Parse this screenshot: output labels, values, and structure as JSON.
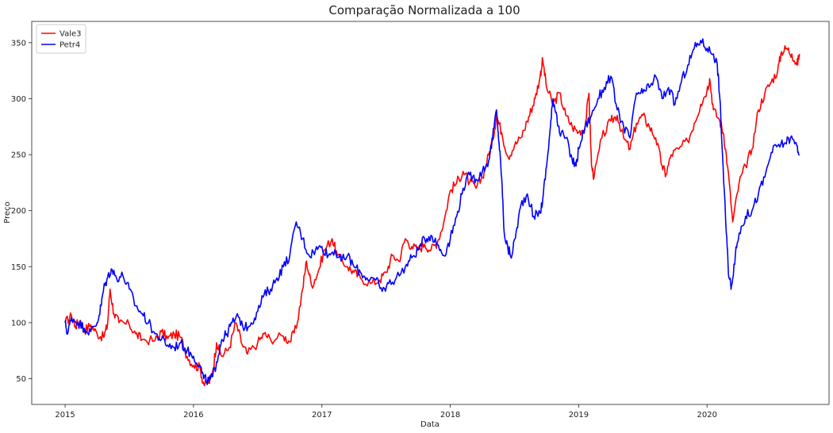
{
  "chart_data": {
    "type": "line",
    "title": "Comparação Normalizada a 100",
    "xlabel": "Data",
    "ylabel": "Preço",
    "xlim": [
      2014.74,
      2020.95
    ],
    "ylim": [
      27,
      369
    ],
    "x_ticks": [
      2015,
      2016,
      2017,
      2018,
      2019,
      2020
    ],
    "x_tick_labels": [
      "2015",
      "2016",
      "2017",
      "2018",
      "2019",
      "2020"
    ],
    "y_ticks": [
      50,
      100,
      150,
      200,
      250,
      300,
      350
    ],
    "y_tick_labels": [
      "50",
      "100",
      "150",
      "200",
      "250",
      "300",
      "350"
    ],
    "grid": false,
    "legend": "upper-left",
    "series": [
      {
        "name": "Vale3",
        "color": "#ff0000",
        "points": [
          [
            2015.0,
            100
          ],
          [
            2015.05,
            106
          ],
          [
            2015.08,
            97
          ],
          [
            2015.12,
            102
          ],
          [
            2015.15,
            93
          ],
          [
            2015.2,
            98
          ],
          [
            2015.25,
            90
          ],
          [
            2015.3,
            87
          ],
          [
            2015.33,
            98
          ],
          [
            2015.35,
            130
          ],
          [
            2015.38,
            108
          ],
          [
            2015.42,
            100
          ],
          [
            2015.5,
            98
          ],
          [
            2015.55,
            90
          ],
          [
            2015.6,
            85
          ],
          [
            2015.7,
            84
          ],
          [
            2015.75,
            92
          ],
          [
            2015.8,
            86
          ],
          [
            2015.85,
            90
          ],
          [
            2015.9,
            87
          ],
          [
            2015.95,
            70
          ],
          [
            2016.0,
            62
          ],
          [
            2016.05,
            60
          ],
          [
            2016.08,
            45
          ],
          [
            2016.12,
            46
          ],
          [
            2016.15,
            57
          ],
          [
            2016.18,
            82
          ],
          [
            2016.22,
            70
          ],
          [
            2016.28,
            78
          ],
          [
            2016.33,
            100
          ],
          [
            2016.38,
            80
          ],
          [
            2016.42,
            72
          ],
          [
            2016.5,
            82
          ],
          [
            2016.55,
            90
          ],
          [
            2016.6,
            85
          ],
          [
            2016.7,
            88
          ],
          [
            2016.75,
            83
          ],
          [
            2016.8,
            95
          ],
          [
            2016.85,
            130
          ],
          [
            2016.88,
            155
          ],
          [
            2016.92,
            133
          ],
          [
            2016.97,
            145
          ],
          [
            2017.02,
            165
          ],
          [
            2017.08,
            175
          ],
          [
            2017.12,
            160
          ],
          [
            2017.2,
            150
          ],
          [
            2017.25,
            145
          ],
          [
            2017.3,
            140
          ],
          [
            2017.38,
            135
          ],
          [
            2017.45,
            138
          ],
          [
            2017.5,
            145
          ],
          [
            2017.55,
            160
          ],
          [
            2017.6,
            155
          ],
          [
            2017.65,
            175
          ],
          [
            2017.7,
            168
          ],
          [
            2017.75,
            165
          ],
          [
            2017.8,
            170
          ],
          [
            2017.85,
            165
          ],
          [
            2017.9,
            172
          ],
          [
            2017.95,
            190
          ],
          [
            2018.0,
            218
          ],
          [
            2018.05,
            225
          ],
          [
            2018.1,
            235
          ],
          [
            2018.15,
            225
          ],
          [
            2018.2,
            220
          ],
          [
            2018.25,
            230
          ],
          [
            2018.3,
            250
          ],
          [
            2018.33,
            263
          ],
          [
            2018.36,
            285
          ],
          [
            2018.4,
            270
          ],
          [
            2018.45,
            248
          ],
          [
            2018.5,
            258
          ],
          [
            2018.55,
            265
          ],
          [
            2018.6,
            280
          ],
          [
            2018.63,
            290
          ],
          [
            2018.66,
            300
          ],
          [
            2018.7,
            320
          ],
          [
            2018.72,
            335
          ],
          [
            2018.75,
            310
          ],
          [
            2018.8,
            295
          ],
          [
            2018.85,
            305
          ],
          [
            2018.9,
            285
          ],
          [
            2018.95,
            275
          ],
          [
            2019.0,
            270
          ],
          [
            2019.05,
            275
          ],
          [
            2019.08,
            305
          ],
          [
            2019.1,
            240
          ],
          [
            2019.12,
            230
          ],
          [
            2019.18,
            265
          ],
          [
            2019.25,
            280
          ],
          [
            2019.3,
            285
          ],
          [
            2019.35,
            265
          ],
          [
            2019.4,
            255
          ],
          [
            2019.45,
            278
          ],
          [
            2019.5,
            285
          ],
          [
            2019.55,
            275
          ],
          [
            2019.6,
            265
          ],
          [
            2019.65,
            240
          ],
          [
            2019.68,
            232
          ],
          [
            2019.72,
            250
          ],
          [
            2019.78,
            255
          ],
          [
            2019.85,
            262
          ],
          [
            2019.9,
            278
          ],
          [
            2019.95,
            295
          ],
          [
            2020.0,
            308
          ],
          [
            2020.02,
            318
          ],
          [
            2020.05,
            290
          ],
          [
            2020.1,
            280
          ],
          [
            2020.13,
            268
          ],
          [
            2020.16,
            240
          ],
          [
            2020.2,
            190
          ],
          [
            2020.25,
            225
          ],
          [
            2020.3,
            240
          ],
          [
            2020.35,
            255
          ],
          [
            2020.4,
            290
          ],
          [
            2020.45,
            305
          ],
          [
            2020.5,
            315
          ],
          [
            2020.55,
            325
          ],
          [
            2020.58,
            342
          ],
          [
            2020.62,
            345
          ],
          [
            2020.66,
            340
          ],
          [
            2020.7,
            330
          ],
          [
            2020.72,
            340
          ]
        ]
      },
      {
        "name": "Petr4",
        "color": "#0000ff",
        "points": [
          [
            2015.0,
            100
          ],
          [
            2015.02,
            90
          ],
          [
            2015.05,
            105
          ],
          [
            2015.1,
            100
          ],
          [
            2015.15,
            95
          ],
          [
            2015.2,
            92
          ],
          [
            2015.25,
            100
          ],
          [
            2015.28,
            115
          ],
          [
            2015.3,
            130
          ],
          [
            2015.33,
            140
          ],
          [
            2015.36,
            148
          ],
          [
            2015.4,
            140
          ],
          [
            2015.45,
            142
          ],
          [
            2015.5,
            130
          ],
          [
            2015.55,
            115
          ],
          [
            2015.6,
            108
          ],
          [
            2015.65,
            100
          ],
          [
            2015.7,
            90
          ],
          [
            2015.75,
            85
          ],
          [
            2015.8,
            80
          ],
          [
            2015.85,
            78
          ],
          [
            2015.9,
            82
          ],
          [
            2015.95,
            75
          ],
          [
            2016.0,
            70
          ],
          [
            2016.05,
            62
          ],
          [
            2016.08,
            50
          ],
          [
            2016.12,
            48
          ],
          [
            2016.15,
            52
          ],
          [
            2016.18,
            65
          ],
          [
            2016.22,
            85
          ],
          [
            2016.26,
            90
          ],
          [
            2016.3,
            100
          ],
          [
            2016.35,
            105
          ],
          [
            2016.4,
            95
          ],
          [
            2016.45,
            100
          ],
          [
            2016.5,
            110
          ],
          [
            2016.55,
            125
          ],
          [
            2016.6,
            130
          ],
          [
            2016.65,
            140
          ],
          [
            2016.7,
            150
          ],
          [
            2016.75,
            160
          ],
          [
            2016.8,
            190
          ],
          [
            2016.85,
            175
          ],
          [
            2016.9,
            160
          ],
          [
            2016.95,
            165
          ],
          [
            2017.0,
            168
          ],
          [
            2017.05,
            160
          ],
          [
            2017.1,
            165
          ],
          [
            2017.15,
            155
          ],
          [
            2017.2,
            160
          ],
          [
            2017.25,
            150
          ],
          [
            2017.3,
            145
          ],
          [
            2017.35,
            140
          ],
          [
            2017.42,
            138
          ],
          [
            2017.47,
            128
          ],
          [
            2017.52,
            135
          ],
          [
            2017.58,
            140
          ],
          [
            2017.65,
            150
          ],
          [
            2017.7,
            158
          ],
          [
            2017.75,
            165
          ],
          [
            2017.8,
            175
          ],
          [
            2017.85,
            178
          ],
          [
            2017.9,
            170
          ],
          [
            2017.95,
            160
          ],
          [
            2018.0,
            175
          ],
          [
            2018.05,
            195
          ],
          [
            2018.1,
            220
          ],
          [
            2018.15,
            232
          ],
          [
            2018.2,
            228
          ],
          [
            2018.25,
            235
          ],
          [
            2018.3,
            245
          ],
          [
            2018.33,
            265
          ],
          [
            2018.36,
            290
          ],
          [
            2018.38,
            260
          ],
          [
            2018.4,
            230
          ],
          [
            2018.42,
            180
          ],
          [
            2018.45,
            165
          ],
          [
            2018.48,
            160
          ],
          [
            2018.52,
            185
          ],
          [
            2018.55,
            205
          ],
          [
            2018.6,
            215
          ],
          [
            2018.65,
            195
          ],
          [
            2018.7,
            198
          ],
          [
            2018.72,
            210
          ],
          [
            2018.75,
            240
          ],
          [
            2018.78,
            275
          ],
          [
            2018.8,
            300
          ],
          [
            2018.83,
            285
          ],
          [
            2018.85,
            270
          ],
          [
            2018.9,
            265
          ],
          [
            2018.95,
            245
          ],
          [
            2018.98,
            240
          ],
          [
            2019.0,
            255
          ],
          [
            2019.05,
            275
          ],
          [
            2019.1,
            285
          ],
          [
            2019.15,
            300
          ],
          [
            2019.2,
            310
          ],
          [
            2019.25,
            320
          ],
          [
            2019.3,
            290
          ],
          [
            2019.35,
            275
          ],
          [
            2019.4,
            265
          ],
          [
            2019.45,
            305
          ],
          [
            2019.5,
            305
          ],
          [
            2019.55,
            310
          ],
          [
            2019.6,
            320
          ],
          [
            2019.65,
            300
          ],
          [
            2019.7,
            310
          ],
          [
            2019.75,
            295
          ],
          [
            2019.8,
            315
          ],
          [
            2019.85,
            330
          ],
          [
            2019.9,
            345
          ],
          [
            2019.95,
            352
          ],
          [
            2020.0,
            345
          ],
          [
            2020.05,
            340
          ],
          [
            2020.08,
            330
          ],
          [
            2020.1,
            300
          ],
          [
            2020.12,
            250
          ],
          [
            2020.15,
            180
          ],
          [
            2020.17,
            140
          ],
          [
            2020.19,
            133
          ],
          [
            2020.22,
            160
          ],
          [
            2020.25,
            180
          ],
          [
            2020.3,
            195
          ],
          [
            2020.35,
            200
          ],
          [
            2020.4,
            215
          ],
          [
            2020.45,
            230
          ],
          [
            2020.5,
            252
          ],
          [
            2020.55,
            258
          ],
          [
            2020.6,
            260
          ],
          [
            2020.65,
            265
          ],
          [
            2020.7,
            258
          ],
          [
            2020.72,
            250
          ]
        ]
      }
    ]
  }
}
